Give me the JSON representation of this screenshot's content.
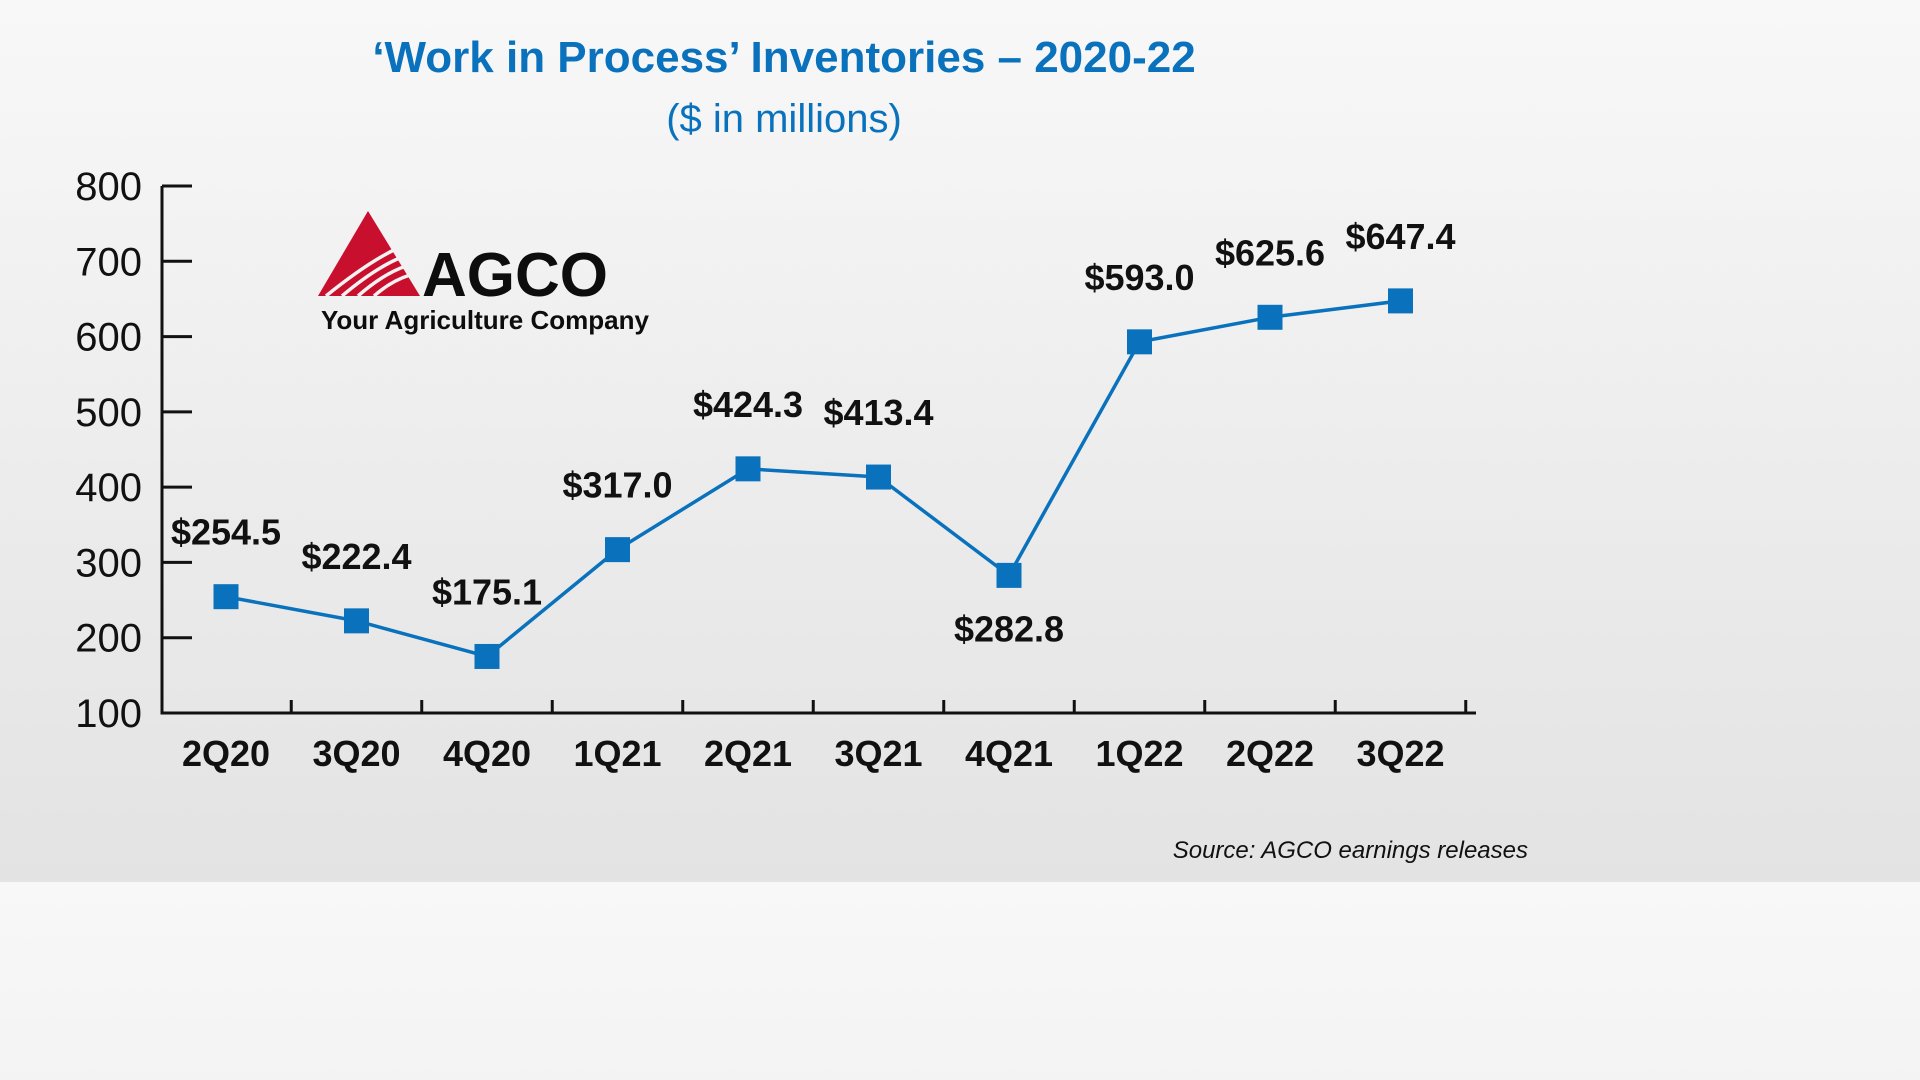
{
  "colors": {
    "accent": "#0a72bd",
    "line": "#0a72bd",
    "marker": "#0a72bd",
    "logo_red": "#c8102e",
    "text": "#111111"
  },
  "logo": {
    "name": "AGCO",
    "tagline": "Your Agriculture Company"
  },
  "source": "Source: AGCO earnings releases",
  "chart_data": {
    "type": "line",
    "title": "‘Work in Process’ Inventories – 2020-22",
    "subtitle": "($ in millions)",
    "xlabel": "",
    "ylabel": "",
    "categories": [
      "2Q20",
      "3Q20",
      "4Q20",
      "1Q21",
      "2Q21",
      "3Q21",
      "4Q21",
      "1Q22",
      "2Q22",
      "3Q22"
    ],
    "series": [
      {
        "values": [
          254.5,
          222.4,
          175.1,
          317.0,
          424.3,
          413.4,
          282.8,
          593.0,
          625.6,
          647.4
        ],
        "data_labels": [
          "$254.5",
          "$222.4",
          "$175.1",
          "$317.0",
          "$424.3",
          "$413.4",
          "$282.8",
          "$593.0",
          "$625.6",
          "$647.4"
        ],
        "label_position": [
          "above",
          "above",
          "above",
          "above",
          "above",
          "above",
          "below",
          "above",
          "above",
          "above"
        ]
      }
    ],
    "ylim": [
      100,
      800
    ],
    "yticks": [
      100,
      200,
      300,
      400,
      500,
      600,
      700,
      800
    ],
    "grid": false,
    "legend": "none",
    "marker": "square"
  }
}
